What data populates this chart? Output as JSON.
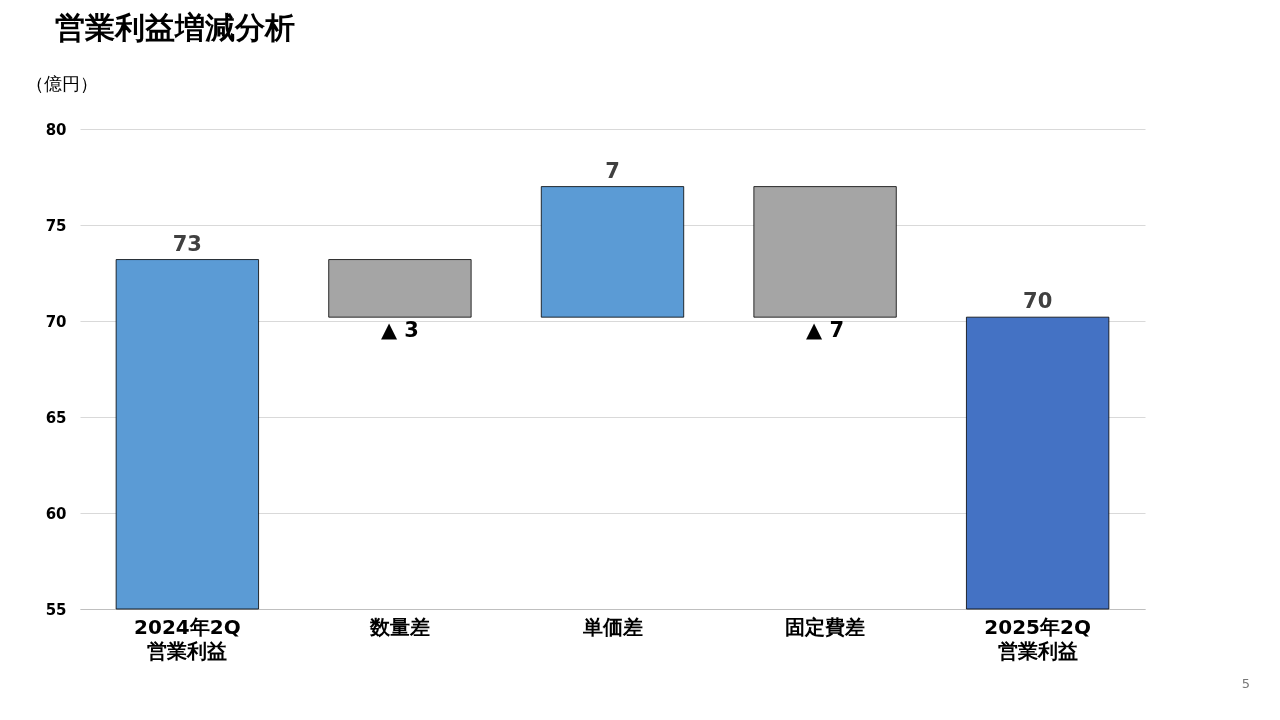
{
  "chart_data": {
    "type": "bar",
    "title": "営業利益増減分析",
    "ylabel": "（億円）",
    "categories": [
      "2024年2Q\n営業利益",
      "数量差",
      "単価差",
      "固定費差",
      "2025年2Q\n営業利益"
    ],
    "base": [
      55,
      73.2,
      70.2,
      77,
      55
    ],
    "values": [
      18.2,
      -3,
      6.8,
      -6.8,
      15.2
    ],
    "colors": [
      "#5b9bd5",
      "#a5a5a5",
      "#5b9bd5",
      "#a5a5a5",
      "#4472c4"
    ],
    "value_labels": [
      "73",
      "▲ 3",
      "7",
      "▲ 7",
      "70"
    ],
    "ylim": [
      55,
      80
    ],
    "yticks": [
      55,
      60,
      65,
      70,
      75,
      80
    ],
    "grid": "y",
    "annotations": [
      "5"
    ]
  }
}
